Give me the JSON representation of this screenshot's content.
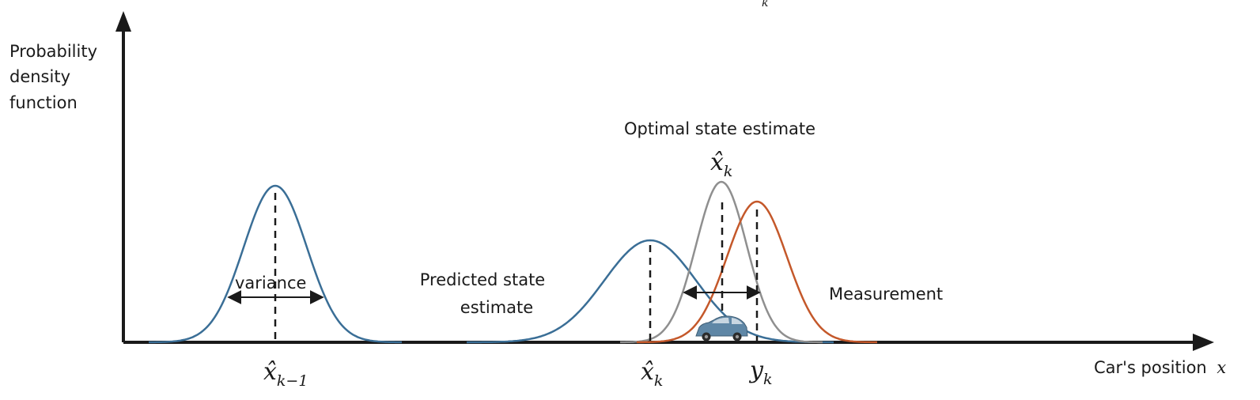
{
  "labels": {
    "y_axis_line1": "Probability",
    "y_axis_line2": "density",
    "y_axis_line3": "function",
    "x_axis": "Car's position",
    "x_axis_var": "x",
    "variance": "variance",
    "predicted_line1": "Predicted state",
    "predicted_line2": "estimate",
    "optimal": "Optimal state estimate",
    "measurement": "Measurement",
    "top_subscript": "k"
  },
  "math": {
    "x_prev_base": "x̂",
    "x_prev_sub": "k−1",
    "x_pred_base": "x̂",
    "x_pred_sub": "k",
    "x_opt_base": "x̂",
    "x_opt_sub": "k",
    "y_meas_base": "y",
    "y_meas_sub": "k"
  },
  "curves": [
    {
      "name": "previous-state",
      "color": "#3a6e96",
      "mean": 348,
      "sd": 40,
      "peak": 235
    },
    {
      "name": "predicted-state",
      "color": "#3a6e96",
      "mean": 822,
      "sd": 58,
      "peak": 304
    },
    {
      "name": "optimal-state",
      "color": "#8f8f8f",
      "mean": 912,
      "sd": 32,
      "peak": 230
    },
    {
      "name": "measurement",
      "color": "#c4582a",
      "mean": 957,
      "sd": 38,
      "peak": 255
    }
  ],
  "icons": {
    "car": "car-icon"
  }
}
